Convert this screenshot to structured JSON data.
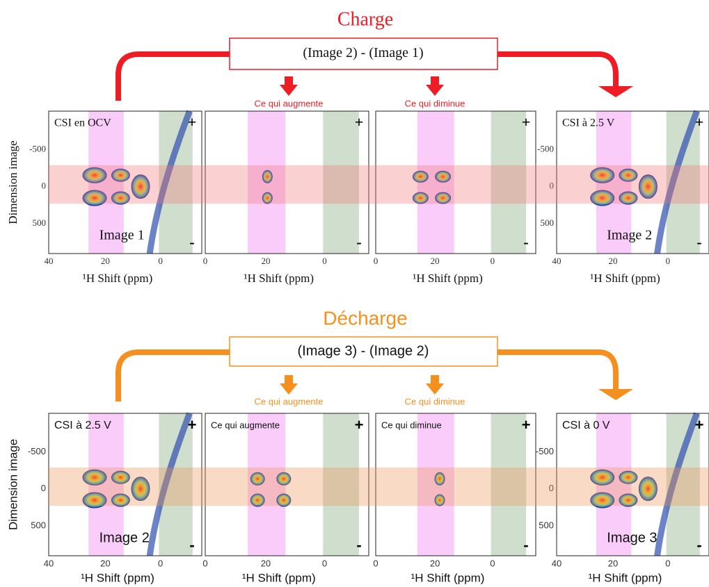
{
  "sections": [
    {
      "title": "Charge",
      "formula": "(Image 2) - (Image 1)",
      "arrow_labels": [
        "Ce qui augmente",
        "Ce qui diminue"
      ],
      "ylabel": "Dimension image",
      "panels": [
        {
          "caption": "CSI en OCV",
          "image": "Image 1",
          "plus": "+",
          "minus": "-",
          "yticks": [
            "-500",
            "0",
            "500"
          ],
          "xticks": [
            "40",
            "20",
            "0"
          ],
          "xlabel": "¹H Shift (ppm)"
        },
        {
          "plus": "+",
          "minus": "-",
          "xticks": [
            "0",
            "20",
            "0"
          ],
          "xlabel": "¹H Shift (ppm)"
        },
        {
          "plus": "+",
          "minus": "-",
          "xticks": [
            "0",
            "20",
            "0"
          ],
          "xlabel": "¹H Shift (ppm)"
        },
        {
          "caption": "CSI à 2.5 V",
          "image": "Image 2",
          "plus": "+",
          "minus": "-",
          "yticks": [
            "-500",
            "0",
            "500"
          ],
          "xticks": [
            "40",
            "20",
            "0"
          ],
          "xlabel": "¹H Shift (ppm)"
        }
      ]
    },
    {
      "title": "Décharge",
      "formula": "(Image 3) - (Image 2)",
      "arrow_labels": [
        "Ce qui augmente",
        "Ce qui diminue"
      ],
      "ylabel": "Dimension image",
      "panels": [
        {
          "caption": "CSI à 2.5 V",
          "image": "Image 2",
          "plus": "+",
          "minus": "-",
          "yticks": [
            "-500",
            "0",
            "500"
          ],
          "xticks": [
            "40",
            "20",
            "0"
          ],
          "xlabel": "¹H Shift (ppm)"
        },
        {
          "caption": "Ce qui augmente",
          "plus": "+",
          "minus": "-",
          "xticks": [
            "0",
            "20",
            "0"
          ],
          "xlabel": "¹H Shift (ppm)"
        },
        {
          "caption": "Ce qui diminue",
          "plus": "+",
          "minus": "-",
          "xticks": [
            "0",
            "20",
            "0"
          ],
          "xlabel": "¹H Shift (ppm)"
        },
        {
          "caption": "CSI à 0 V",
          "image": "Image 3",
          "plus": "+",
          "minus": "-",
          "yticks": [
            "-500",
            "0",
            "500"
          ],
          "xticks": [
            "40",
            "20",
            "0"
          ],
          "xlabel": "¹H Shift (ppm)"
        }
      ]
    }
  ]
}
